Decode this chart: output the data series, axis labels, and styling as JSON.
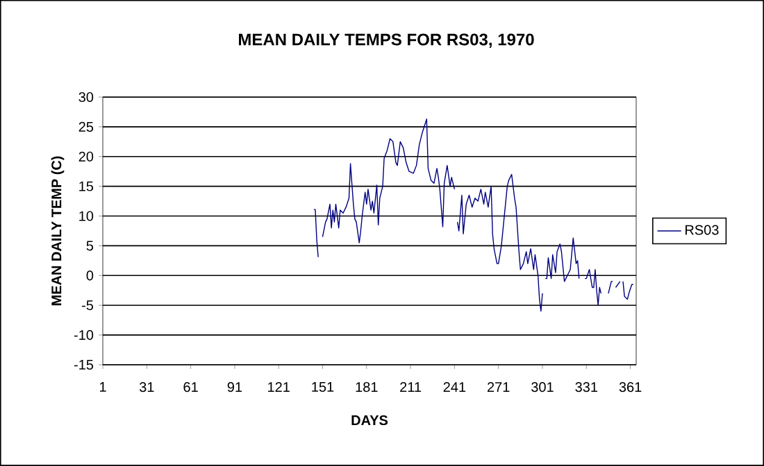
{
  "chart_data": {
    "type": "line",
    "title": "MEAN DAILY TEMPS FOR RS03, 1970",
    "xlabel": "DAYS",
    "ylabel": "MEAN DAILY TEMP (C)",
    "xlim": [
      1,
      365
    ],
    "xticks": [
      1,
      31,
      61,
      91,
      121,
      151,
      181,
      211,
      241,
      271,
      301,
      331,
      361
    ],
    "ylim": [
      -15,
      30
    ],
    "yticks": [
      -15,
      -10,
      -5,
      0,
      5,
      10,
      15,
      20,
      25,
      30
    ],
    "grid": "y",
    "legend": "right",
    "marker": "none",
    "line_style": "solid",
    "series": [
      {
        "name": "RS03",
        "color": "#000080",
        "x": [
          145,
          146,
          147,
          148,
          150,
          151,
          153,
          154,
          156,
          157,
          158,
          159,
          160,
          162,
          163,
          165,
          167,
          169,
          170,
          172,
          173,
          174,
          176,
          177,
          178,
          180,
          181,
          182,
          184,
          185,
          186,
          188,
          189,
          190,
          192,
          193,
          195,
          197,
          199,
          201,
          202,
          204,
          206,
          208,
          210,
          213,
          215,
          217,
          219,
          222,
          223,
          225,
          227,
          229,
          230,
          231,
          233,
          234,
          236,
          238,
          239,
          241,
          242,
          243,
          244,
          246,
          247,
          249,
          251,
          253,
          255,
          257,
          259,
          261,
          262,
          264,
          266,
          267,
          268,
          270,
          271,
          273,
          275,
          277,
          278,
          280,
          282,
          283,
          285,
          286,
          288,
          290,
          291,
          293,
          295,
          296,
          298,
          299,
          300,
          301,
          302,
          303,
          304,
          305,
          307,
          308,
          310,
          311,
          313,
          314,
          316,
          317,
          319,
          320,
          322,
          324,
          325,
          326,
          328,
          330,
          331,
          333,
          335,
          336,
          337,
          338,
          339,
          340,
          341,
          344,
          346,
          348,
          349,
          350,
          351,
          354,
          355,
          356,
          357,
          359,
          360,
          362,
          363
        ],
        "values": [
          11.1,
          11.1,
          6,
          3.1,
          null,
          6.5,
          9,
          9.5,
          12,
          8,
          11,
          9,
          12,
          8,
          11,
          10.5,
          11.5,
          13,
          18.8,
          12,
          9.5,
          9,
          5.5,
          7.5,
          10,
          14,
          12,
          14.5,
          11,
          12.5,
          10.5,
          15.2,
          8.5,
          13,
          15,
          19.7,
          21,
          23,
          22.5,
          19,
          18.5,
          22.5,
          21.5,
          19,
          17.5,
          17.2,
          18.5,
          22,
          24,
          26.3,
          18,
          16,
          15.5,
          18,
          16.5,
          14.5,
          8.2,
          15.5,
          18.5,
          15,
          16.5,
          14.5,
          null,
          9,
          7.5,
          13.5,
          7,
          12,
          13.5,
          11.5,
          13,
          12.5,
          14.5,
          12,
          14,
          11.5,
          15,
          7,
          4.5,
          2,
          2,
          5,
          10,
          15,
          16,
          17,
          13,
          11.5,
          4,
          1,
          2,
          4,
          2,
          4.5,
          1,
          3.5,
          0,
          -4,
          -6,
          -3,
          null,
          -0.5,
          -0.5,
          3,
          -0.5,
          3.5,
          0.5,
          4,
          5.3,
          4,
          -1,
          -0.5,
          0.5,
          1,
          6.3,
          2,
          2.5,
          -0.5,
          null,
          -0.5,
          -0.5,
          1,
          -2,
          -2,
          1,
          -2.5,
          -5,
          -2,
          -3,
          null,
          -3,
          -1,
          -1,
          null,
          -2,
          -1,
          null,
          -1,
          -3.5,
          -4,
          -3,
          -1.5,
          -1.5
        ]
      }
    ]
  }
}
